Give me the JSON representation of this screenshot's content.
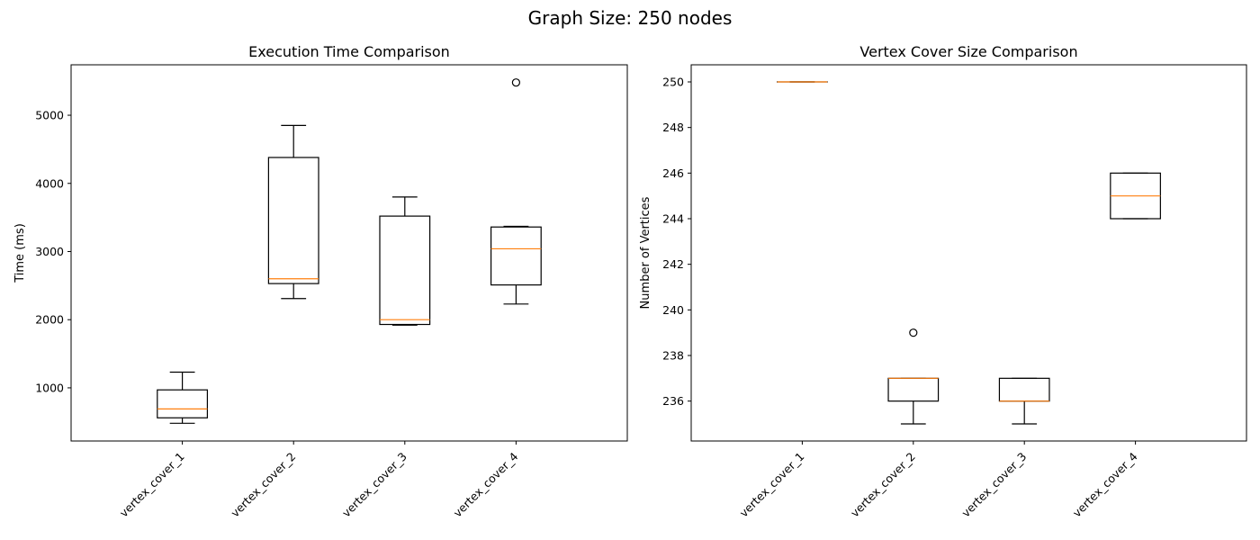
{
  "figure": {
    "suptitle": "Graph Size: 250 nodes"
  },
  "chart_data": [
    {
      "type": "box",
      "title": "Execution Time Comparison",
      "xlabel": "",
      "ylabel": "Time (ms)",
      "ylim": [
        220,
        5740
      ],
      "yticks": [
        1000,
        2000,
        3000,
        4000,
        5000
      ],
      "grid": false,
      "categories": [
        "vertex_cover_1",
        "vertex_cover_2",
        "vertex_cover_3",
        "vertex_cover_4"
      ],
      "boxes": [
        {
          "whisker_low": 480,
          "q1": 560,
          "median": 690,
          "q3": 970,
          "whisker_high": 1230,
          "outliers": []
        },
        {
          "whisker_low": 2310,
          "q1": 2530,
          "median": 2600,
          "q3": 4380,
          "whisker_high": 4850,
          "outliers": []
        },
        {
          "whisker_low": 1920,
          "q1": 1930,
          "median": 2000,
          "q3": 3520,
          "whisker_high": 3800,
          "outliers": []
        },
        {
          "whisker_low": 2230,
          "q1": 2510,
          "median": 3040,
          "q3": 3360,
          "whisker_high": 3370,
          "outliers": [
            5480
          ]
        }
      ]
    },
    {
      "type": "box",
      "title": "Vertex Cover Size Comparison",
      "xlabel": "",
      "ylabel": "Number of Vertices",
      "ylim": [
        234.25,
        250.75
      ],
      "yticks": [
        236,
        238,
        240,
        242,
        244,
        246,
        248,
        250
      ],
      "grid": false,
      "categories": [
        "vertex_cover_1",
        "vertex_cover_2",
        "vertex_cover_3",
        "vertex_cover_4"
      ],
      "boxes": [
        {
          "whisker_low": 250,
          "q1": 250,
          "median": 250,
          "q3": 250,
          "whisker_high": 250,
          "outliers": []
        },
        {
          "whisker_low": 235,
          "q1": 236,
          "median": 237,
          "q3": 237,
          "whisker_high": 237,
          "outliers": [
            239
          ]
        },
        {
          "whisker_low": 235,
          "q1": 236,
          "median": 236,
          "q3": 237,
          "whisker_high": 237,
          "outliers": []
        },
        {
          "whisker_low": 244,
          "q1": 244,
          "median": 245,
          "q3": 246,
          "whisker_high": 246,
          "outliers": []
        }
      ]
    }
  ],
  "colors": {
    "box": "#000000",
    "median": "#ff7f0e",
    "background": "#ffffff"
  }
}
